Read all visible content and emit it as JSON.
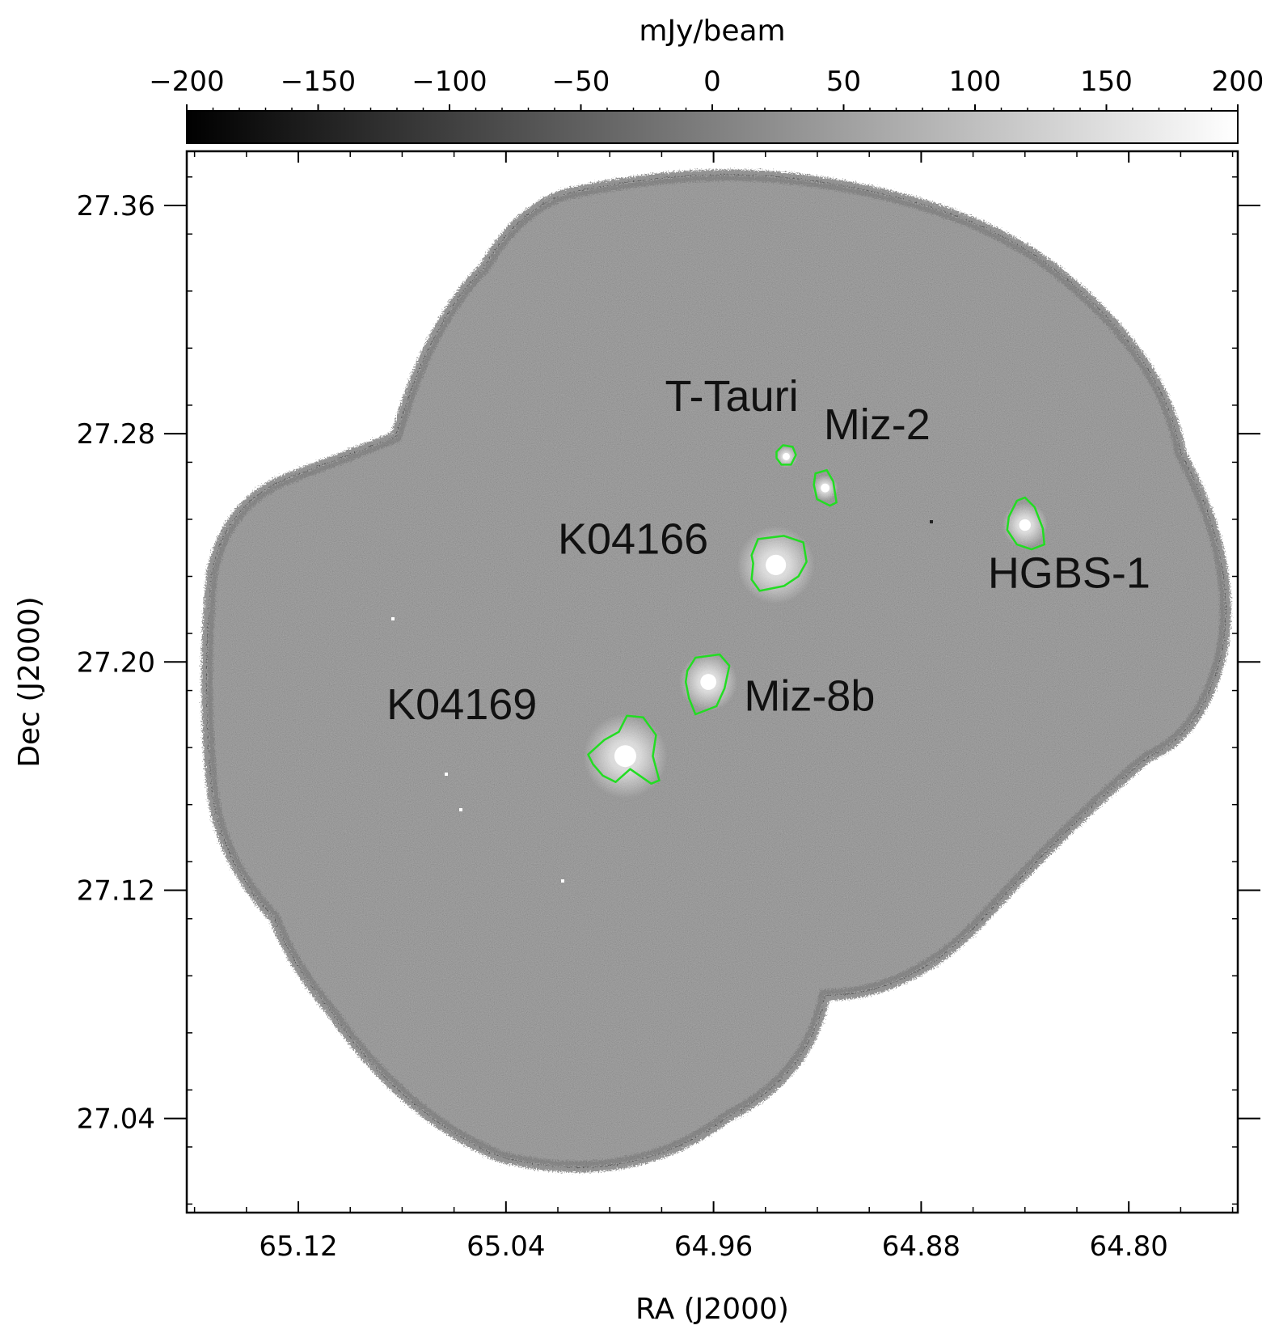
{
  "chart_data": {
    "type": "heatmap",
    "colorbar": {
      "label": "mJy/beam",
      "range": [
        -200,
        200
      ],
      "ticks": [
        -200,
        -150,
        -100,
        -50,
        0,
        50,
        100,
        150,
        200
      ],
      "tick_labels": [
        "−200",
        "−150",
        "−100",
        "−50",
        "0",
        "50",
        "100",
        "150",
        "200"
      ],
      "colormap": "gray",
      "location": "top"
    },
    "xlabel": "RA (J2000)",
    "ylabel": "Dec (J2000)",
    "x_ticks": [
      65.12,
      65.04,
      64.96,
      64.88,
      64.8
    ],
    "x_tick_labels": [
      "65.12",
      "65.04",
      "64.96",
      "64.88",
      "64.80"
    ],
    "y_ticks": [
      27.36,
      27.28,
      27.2,
      27.12,
      27.04
    ],
    "y_tick_labels": [
      "27.36",
      "27.28",
      "27.20",
      "27.12",
      "27.04"
    ],
    "xlim": [
      65.163,
      64.758
    ],
    "ylim": [
      27.007,
      27.379
    ],
    "contour_color": "#22dd22",
    "sources": [
      {
        "name": "T-Tauri",
        "ra": 64.932,
        "dec": 27.272,
        "label_ra": 64.953,
        "label_dec": 27.288
      },
      {
        "name": "Miz-2",
        "ra": 64.917,
        "dec": 27.261,
        "label_ra": 64.897,
        "label_dec": 27.278
      },
      {
        "name": "HGBS-1",
        "ra": 64.84,
        "dec": 27.248,
        "label_ra": 64.823,
        "label_dec": 27.226
      },
      {
        "name": "K04166",
        "ra": 64.936,
        "dec": 27.234,
        "label_ra": 64.991,
        "label_dec": 27.238
      },
      {
        "name": "Miz-8b",
        "ra": 64.962,
        "dec": 27.193,
        "label_ra": 64.923,
        "label_dec": 27.183
      },
      {
        "name": "K04169",
        "ra": 64.994,
        "dec": 27.167,
        "label_ra": 65.057,
        "label_dec": 27.18
      }
    ]
  }
}
